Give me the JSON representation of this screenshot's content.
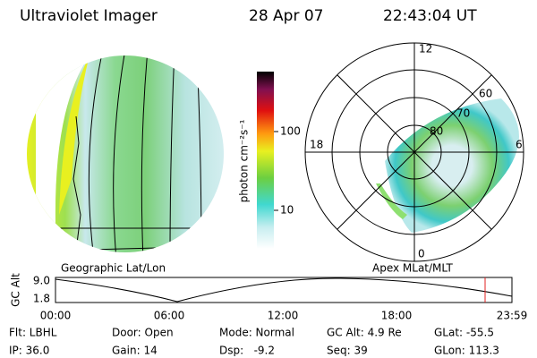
{
  "header": {
    "title": "Ultraviolet Imager",
    "date": "28 Apr 07",
    "time": "22:43:04 UT"
  },
  "colorbar": {
    "label": "photon cm⁻²s⁻¹",
    "ticks": [
      "100",
      "10"
    ]
  },
  "left_panel": {
    "label": "Geographic Lat/Lon"
  },
  "right_panel": {
    "label": "Apex MLat/MLT",
    "mlt_labels": [
      "12",
      "18",
      "6",
      "0"
    ],
    "lat_labels": [
      "60",
      "70",
      "80"
    ]
  },
  "altitude_plot": {
    "ylabel": "GC Alt",
    "yticks": [
      "9.0",
      "1.8"
    ],
    "xticks": [
      "00:00",
      "06:00",
      "12:00",
      "18:00",
      "23:59"
    ]
  },
  "info": [
    [
      "Flt: LBHL",
      "Door: Open",
      "Mode: Normal",
      "GC Alt: 4.9 Re",
      "GLat: -55.5"
    ],
    [
      "IP: 36.0",
      "Gain: 14",
      "Dsp:   -9.2",
      "Seq: 39",
      "GLon: 113.3"
    ]
  ]
}
